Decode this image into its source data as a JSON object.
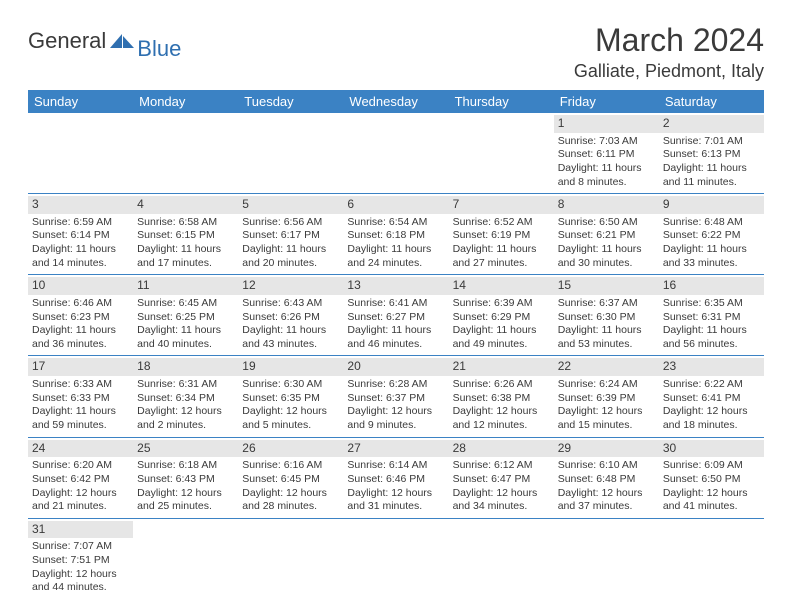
{
  "brand": {
    "part1": "General",
    "part2": "Blue"
  },
  "title": "March 2024",
  "location": "Galliate, Piedmont, Italy",
  "colors": {
    "header_bg": "#3b82c4",
    "header_text": "#ffffff",
    "daynum_bg": "#e6e6e6",
    "row_border": "#3b82c4",
    "brand_blue": "#2f6fb0",
    "text": "#3a3a3a",
    "page_bg": "#ffffff"
  },
  "typography": {
    "title_fontsize": 32,
    "location_fontsize": 18,
    "header_fontsize": 13,
    "cell_fontsize": 10.5
  },
  "weekdays": [
    "Sunday",
    "Monday",
    "Tuesday",
    "Wednesday",
    "Thursday",
    "Friday",
    "Saturday"
  ],
  "weeks": [
    [
      null,
      null,
      null,
      null,
      null,
      {
        "n": "1",
        "sr": "Sunrise: 7:03 AM",
        "ss": "Sunset: 6:11 PM",
        "d1": "Daylight: 11 hours",
        "d2": "and 8 minutes."
      },
      {
        "n": "2",
        "sr": "Sunrise: 7:01 AM",
        "ss": "Sunset: 6:13 PM",
        "d1": "Daylight: 11 hours",
        "d2": "and 11 minutes."
      }
    ],
    [
      {
        "n": "3",
        "sr": "Sunrise: 6:59 AM",
        "ss": "Sunset: 6:14 PM",
        "d1": "Daylight: 11 hours",
        "d2": "and 14 minutes."
      },
      {
        "n": "4",
        "sr": "Sunrise: 6:58 AM",
        "ss": "Sunset: 6:15 PM",
        "d1": "Daylight: 11 hours",
        "d2": "and 17 minutes."
      },
      {
        "n": "5",
        "sr": "Sunrise: 6:56 AM",
        "ss": "Sunset: 6:17 PM",
        "d1": "Daylight: 11 hours",
        "d2": "and 20 minutes."
      },
      {
        "n": "6",
        "sr": "Sunrise: 6:54 AM",
        "ss": "Sunset: 6:18 PM",
        "d1": "Daylight: 11 hours",
        "d2": "and 24 minutes."
      },
      {
        "n": "7",
        "sr": "Sunrise: 6:52 AM",
        "ss": "Sunset: 6:19 PM",
        "d1": "Daylight: 11 hours",
        "d2": "and 27 minutes."
      },
      {
        "n": "8",
        "sr": "Sunrise: 6:50 AM",
        "ss": "Sunset: 6:21 PM",
        "d1": "Daylight: 11 hours",
        "d2": "and 30 minutes."
      },
      {
        "n": "9",
        "sr": "Sunrise: 6:48 AM",
        "ss": "Sunset: 6:22 PM",
        "d1": "Daylight: 11 hours",
        "d2": "and 33 minutes."
      }
    ],
    [
      {
        "n": "10",
        "sr": "Sunrise: 6:46 AM",
        "ss": "Sunset: 6:23 PM",
        "d1": "Daylight: 11 hours",
        "d2": "and 36 minutes."
      },
      {
        "n": "11",
        "sr": "Sunrise: 6:45 AM",
        "ss": "Sunset: 6:25 PM",
        "d1": "Daylight: 11 hours",
        "d2": "and 40 minutes."
      },
      {
        "n": "12",
        "sr": "Sunrise: 6:43 AM",
        "ss": "Sunset: 6:26 PM",
        "d1": "Daylight: 11 hours",
        "d2": "and 43 minutes."
      },
      {
        "n": "13",
        "sr": "Sunrise: 6:41 AM",
        "ss": "Sunset: 6:27 PM",
        "d1": "Daylight: 11 hours",
        "d2": "and 46 minutes."
      },
      {
        "n": "14",
        "sr": "Sunrise: 6:39 AM",
        "ss": "Sunset: 6:29 PM",
        "d1": "Daylight: 11 hours",
        "d2": "and 49 minutes."
      },
      {
        "n": "15",
        "sr": "Sunrise: 6:37 AM",
        "ss": "Sunset: 6:30 PM",
        "d1": "Daylight: 11 hours",
        "d2": "and 53 minutes."
      },
      {
        "n": "16",
        "sr": "Sunrise: 6:35 AM",
        "ss": "Sunset: 6:31 PM",
        "d1": "Daylight: 11 hours",
        "d2": "and 56 minutes."
      }
    ],
    [
      {
        "n": "17",
        "sr": "Sunrise: 6:33 AM",
        "ss": "Sunset: 6:33 PM",
        "d1": "Daylight: 11 hours",
        "d2": "and 59 minutes."
      },
      {
        "n": "18",
        "sr": "Sunrise: 6:31 AM",
        "ss": "Sunset: 6:34 PM",
        "d1": "Daylight: 12 hours",
        "d2": "and 2 minutes."
      },
      {
        "n": "19",
        "sr": "Sunrise: 6:30 AM",
        "ss": "Sunset: 6:35 PM",
        "d1": "Daylight: 12 hours",
        "d2": "and 5 minutes."
      },
      {
        "n": "20",
        "sr": "Sunrise: 6:28 AM",
        "ss": "Sunset: 6:37 PM",
        "d1": "Daylight: 12 hours",
        "d2": "and 9 minutes."
      },
      {
        "n": "21",
        "sr": "Sunrise: 6:26 AM",
        "ss": "Sunset: 6:38 PM",
        "d1": "Daylight: 12 hours",
        "d2": "and 12 minutes."
      },
      {
        "n": "22",
        "sr": "Sunrise: 6:24 AM",
        "ss": "Sunset: 6:39 PM",
        "d1": "Daylight: 12 hours",
        "d2": "and 15 minutes."
      },
      {
        "n": "23",
        "sr": "Sunrise: 6:22 AM",
        "ss": "Sunset: 6:41 PM",
        "d1": "Daylight: 12 hours",
        "d2": "and 18 minutes."
      }
    ],
    [
      {
        "n": "24",
        "sr": "Sunrise: 6:20 AM",
        "ss": "Sunset: 6:42 PM",
        "d1": "Daylight: 12 hours",
        "d2": "and 21 minutes."
      },
      {
        "n": "25",
        "sr": "Sunrise: 6:18 AM",
        "ss": "Sunset: 6:43 PM",
        "d1": "Daylight: 12 hours",
        "d2": "and 25 minutes."
      },
      {
        "n": "26",
        "sr": "Sunrise: 6:16 AM",
        "ss": "Sunset: 6:45 PM",
        "d1": "Daylight: 12 hours",
        "d2": "and 28 minutes."
      },
      {
        "n": "27",
        "sr": "Sunrise: 6:14 AM",
        "ss": "Sunset: 6:46 PM",
        "d1": "Daylight: 12 hours",
        "d2": "and 31 minutes."
      },
      {
        "n": "28",
        "sr": "Sunrise: 6:12 AM",
        "ss": "Sunset: 6:47 PM",
        "d1": "Daylight: 12 hours",
        "d2": "and 34 minutes."
      },
      {
        "n": "29",
        "sr": "Sunrise: 6:10 AM",
        "ss": "Sunset: 6:48 PM",
        "d1": "Daylight: 12 hours",
        "d2": "and 37 minutes."
      },
      {
        "n": "30",
        "sr": "Sunrise: 6:09 AM",
        "ss": "Sunset: 6:50 PM",
        "d1": "Daylight: 12 hours",
        "d2": "and 41 minutes."
      }
    ],
    [
      {
        "n": "31",
        "sr": "Sunrise: 7:07 AM",
        "ss": "Sunset: 7:51 PM",
        "d1": "Daylight: 12 hours",
        "d2": "and 44 minutes."
      },
      null,
      null,
      null,
      null,
      null,
      null
    ]
  ]
}
